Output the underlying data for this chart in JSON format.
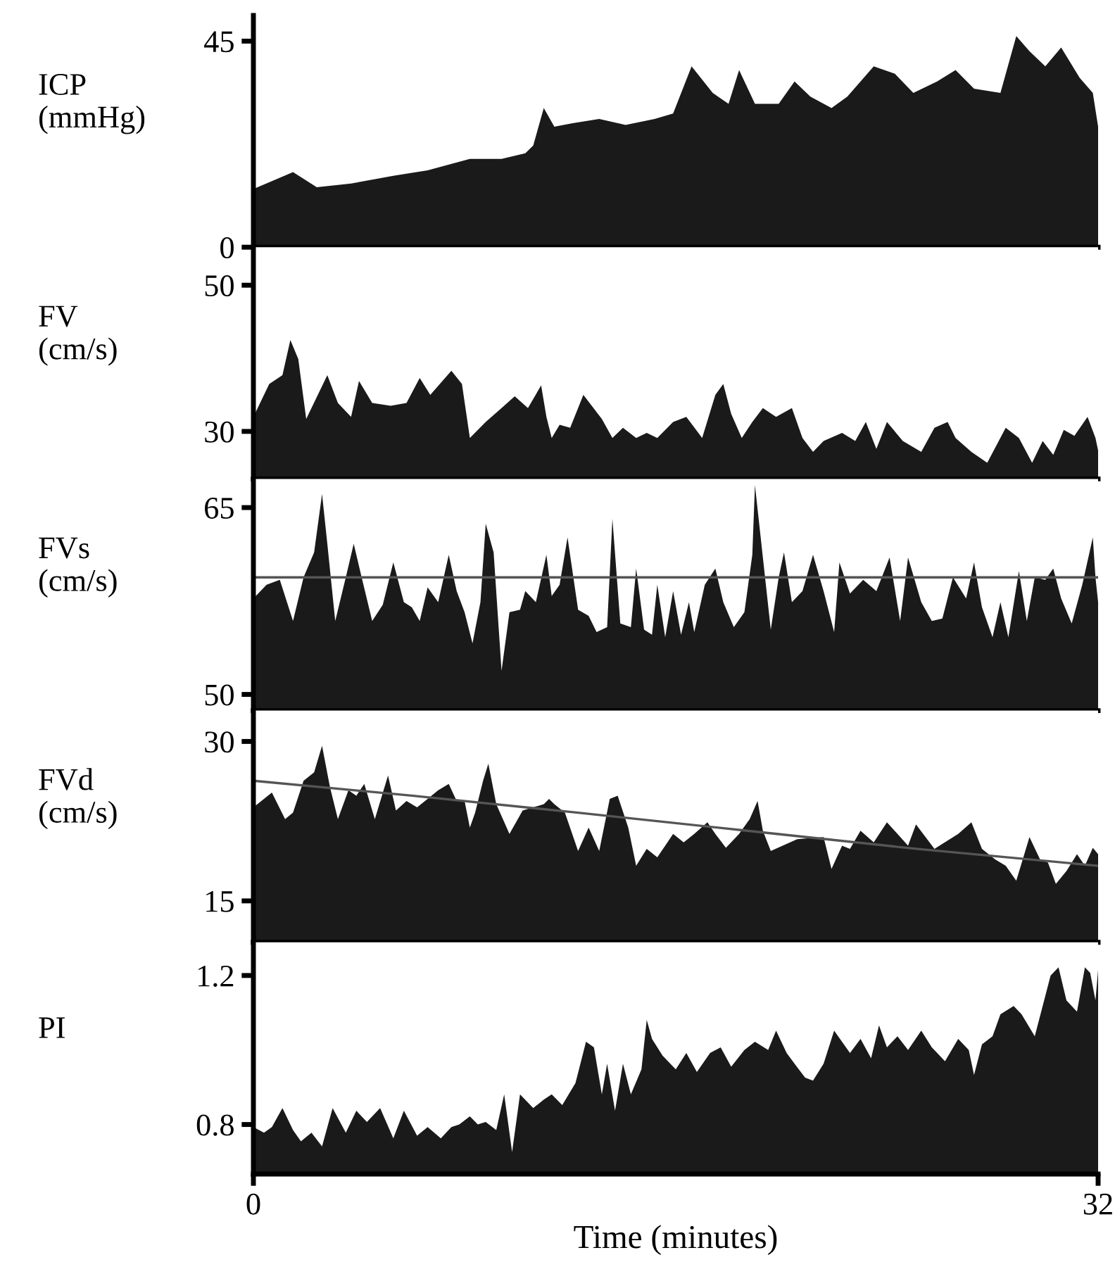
{
  "chart_data": [
    {
      "type": "area",
      "ylabel": "ICP\n(mmHg)",
      "xlim": [
        0,
        32
      ],
      "xticks": [
        0,
        32
      ],
      "ylim": [
        0,
        50.6
      ],
      "yticks": [
        0,
        45
      ],
      "tick_labels": "y",
      "series": [
        {
          "color": "#1a1a1a",
          "x": [
            0,
            1.5,
            2.4,
            3.7,
            5.3,
            6.6,
            8.2,
            9.4,
            10.3,
            10.6,
            11.0,
            11.4,
            12.1,
            13.1,
            14.1,
            15.2,
            15.9,
            16.6,
            17.4,
            18.0,
            18.4,
            19.0,
            19.9,
            20.5,
            21.1,
            21.9,
            22.5,
            23.5,
            24.3,
            25.0,
            25.9,
            26.6,
            27.3,
            28.3,
            28.9,
            29.4,
            30.0,
            30.6,
            31.3,
            31.8,
            32
          ],
          "values": [
            12.7,
            16.4,
            13.1,
            13.9,
            15.6,
            16.8,
            19.3,
            19.3,
            20.5,
            22.2,
            30.4,
            26.3,
            27.1,
            28.0,
            26.7,
            28.0,
            29.2,
            39.5,
            33.7,
            31.3,
            38.7,
            31.3,
            31.3,
            36.2,
            32.9,
            30.4,
            32.9,
            39.5,
            37.9,
            33.7,
            36.2,
            38.7,
            34.6,
            33.7,
            46.1,
            42.8,
            39.5,
            43.6,
            37.0,
            33.7,
            26.3
          ]
        }
      ]
    },
    {
      "type": "area",
      "ylabel": "FV\n(cm/s)",
      "xlim": [
        0,
        32
      ],
      "xticks": [
        0,
        32
      ],
      "ylim": [
        23.5,
        55.2
      ],
      "yticks": [
        30,
        50
      ],
      "tick_labels": "y",
      "series": [
        {
          "color": "#1a1a1a",
          "x": [
            0,
            0.6,
            1.1,
            1.4,
            1.7,
            2.0,
            2.8,
            3.2,
            3.7,
            4.0,
            4.5,
            5.2,
            5.8,
            6.3,
            6.7,
            7.5,
            7.9,
            8.2,
            8.8,
            9.4,
            9.9,
            10.4,
            10.9,
            11.1,
            11.3,
            11.6,
            12.0,
            12.5,
            13.2,
            13.6,
            14.0,
            14.5,
            14.9,
            15.3,
            15.9,
            16.4,
            17.0,
            17.5,
            17.8,
            18.1,
            18.5,
            18.9,
            19.3,
            19.8,
            20.4,
            20.8,
            21.2,
            21.6,
            22.3,
            22.8,
            23.2,
            23.6,
            24.0,
            24.6,
            25.3,
            25.8,
            26.3,
            26.6,
            27.2,
            27.8,
            28.5,
            29.0,
            29.5,
            29.9,
            30.3,
            30.7,
            31.1,
            31.6,
            31.9,
            32
          ],
          "values": [
            32.0,
            36.5,
            37.7,
            42.5,
            39.9,
            31.7,
            37.7,
            33.9,
            32.0,
            36.9,
            33.9,
            33.5,
            33.9,
            37.3,
            35.0,
            38.3,
            36.5,
            29.1,
            31.3,
            33.2,
            34.8,
            33.2,
            36.3,
            32.0,
            29.1,
            30.9,
            30.5,
            35.0,
            31.7,
            29.1,
            30.5,
            29.1,
            29.8,
            29.1,
            31.3,
            32.0,
            29.1,
            35.0,
            36.5,
            32.4,
            29.1,
            31.3,
            33.2,
            32.0,
            33.2,
            29.1,
            27.2,
            28.7,
            29.8,
            28.7,
            31.3,
            27.6,
            31.3,
            28.7,
            27.2,
            30.5,
            31.3,
            29.1,
            27.2,
            25.7,
            30.5,
            29.1,
            25.7,
            28.7,
            26.8,
            30.2,
            29.4,
            32.0,
            29.1,
            27.4
          ]
        }
      ]
    },
    {
      "type": "area",
      "ylabel": "FVs\n(cm/s)",
      "xlim": [
        0,
        32
      ],
      "xticks": [
        0,
        32
      ],
      "ylim": [
        48.7,
        67.3
      ],
      "yticks": [
        50,
        65
      ],
      "tick_labels": "y",
      "series": [
        {
          "color": "#1a1a1a",
          "x": [
            0,
            0.5,
            1.0,
            1.5,
            1.9,
            2.3,
            2.6,
            2.8,
            3.1,
            3.5,
            3.8,
            4.1,
            4.5,
            4.9,
            5.3,
            5.7,
            6.0,
            6.3,
            6.6,
            7.0,
            7.4,
            7.7,
            8.0,
            8.3,
            8.6,
            8.8,
            9.1,
            9.4,
            9.7,
            10.1,
            10.3,
            10.7,
            11.1,
            11.3,
            11.6,
            11.9,
            12.3,
            12.7,
            13.0,
            13.4,
            13.6,
            13.9,
            14.3,
            14.5,
            14.8,
            15.1,
            15.3,
            15.6,
            15.9,
            16.2,
            16.5,
            16.7,
            17.1,
            17.5,
            17.8,
            18.2,
            18.6,
            18.9,
            19.0,
            19.3,
            19.6,
            19.9,
            20.1,
            20.4,
            20.8,
            21.2,
            21.6,
            22.0,
            22.2,
            22.6,
            23.1,
            23.6,
            24.1,
            24.5,
            24.8,
            25.3,
            25.7,
            26.1,
            26.5,
            27.0,
            27.3,
            27.6,
            28.0,
            28.3,
            28.6,
            29.0,
            29.3,
            29.6,
            30.0,
            30.3,
            30.6,
            31.0,
            31.4,
            31.8,
            31.9,
            32
          ],
          "values": [
            57.7,
            58.8,
            59.2,
            55.9,
            59.4,
            61.4,
            66.1,
            62.1,
            55.9,
            59.4,
            62.1,
            59.4,
            55.9,
            57.2,
            60.6,
            57.4,
            57.0,
            55.9,
            58.6,
            57.4,
            61.2,
            58.3,
            56.6,
            54.1,
            57.4,
            63.7,
            61.4,
            51.9,
            56.6,
            56.8,
            58.3,
            57.4,
            61.2,
            57.9,
            58.8,
            62.6,
            56.8,
            56.3,
            55.0,
            55.4,
            64.1,
            55.7,
            55.4,
            60.1,
            55.2,
            54.8,
            58.8,
            54.6,
            58.3,
            54.8,
            57.4,
            55.0,
            58.8,
            60.1,
            57.4,
            55.4,
            56.6,
            61.2,
            66.8,
            61.0,
            55.2,
            59.4,
            61.4,
            57.4,
            58.3,
            61.2,
            58.3,
            55.0,
            60.6,
            58.1,
            59.2,
            58.3,
            61.0,
            55.9,
            61.0,
            57.4,
            55.9,
            56.1,
            59.4,
            57.7,
            60.6,
            57.0,
            54.6,
            57.4,
            54.6,
            59.9,
            55.9,
            59.4,
            59.2,
            60.1,
            57.7,
            55.7,
            58.8,
            62.6,
            59.4,
            57.4
          ]
        },
        {
          "type": "line",
          "color": "#555555",
          "x": [
            0,
            32
          ],
          "values": [
            59.4,
            59.4
          ]
        }
      ]
    },
    {
      "type": "area",
      "ylabel": "FVd\n(cm/s)",
      "xlim": [
        0,
        32
      ],
      "xticks": [
        0,
        32
      ],
      "ylim": [
        11.1,
        32.9
      ],
      "yticks": [
        15,
        30
      ],
      "tick_labels": "y",
      "series": [
        {
          "color": "#1a1a1a",
          "x": [
            0,
            0.7,
            1.2,
            1.5,
            1.9,
            2.3,
            2.6,
            2.9,
            3.2,
            3.6,
            3.9,
            4.2,
            4.6,
            5.1,
            5.4,
            5.8,
            6.2,
            6.6,
            7.0,
            7.4,
            7.7,
            8.0,
            8.2,
            8.4,
            8.7,
            8.9,
            9.2,
            9.7,
            10.2,
            10.6,
            11.0,
            11.2,
            11.4,
            11.8,
            12.3,
            12.7,
            13.1,
            13.5,
            13.8,
            14.2,
            14.5,
            14.9,
            15.3,
            15.6,
            15.9,
            16.3,
            16.7,
            17.2,
            17.5,
            17.9,
            18.4,
            18.8,
            19.1,
            19.3,
            19.6,
            20.6,
            21.6,
            21.9,
            22.3,
            22.6,
            23.0,
            23.5,
            24.0,
            24.4,
            24.8,
            25.1,
            25.8,
            26.7,
            27.2,
            27.6,
            28.1,
            28.5,
            28.9,
            29.4,
            29.8,
            30.1,
            30.4,
            30.8,
            31.2,
            31.5,
            31.8,
            32
          ],
          "values": [
            23.8,
            25.2,
            22.7,
            23.3,
            26.3,
            27.1,
            29.6,
            25.7,
            22.7,
            25.4,
            24.9,
            26.0,
            22.7,
            26.8,
            23.5,
            24.4,
            23.8,
            24.6,
            25.4,
            26.0,
            24.4,
            24.4,
            21.9,
            23.3,
            26.3,
            27.9,
            24.1,
            21.3,
            23.5,
            23.8,
            24.1,
            24.6,
            24.1,
            23.3,
            19.7,
            21.9,
            19.7,
            24.6,
            24.9,
            21.9,
            18.3,
            19.9,
            19.1,
            20.2,
            21.3,
            20.5,
            21.3,
            22.4,
            21.3,
            20.0,
            21.3,
            22.7,
            24.4,
            21.6,
            19.7,
            20.8,
            21.0,
            18.0,
            20.2,
            19.9,
            21.6,
            20.5,
            22.4,
            21.3,
            20.2,
            22.2,
            19.9,
            21.3,
            22.4,
            19.9,
            18.9,
            18.3,
            16.9,
            21.0,
            18.9,
            18.6,
            16.6,
            17.8,
            19.4,
            18.3,
            20.0,
            19.4
          ]
        },
        {
          "type": "line",
          "color": "#555555",
          "x": [
            0,
            6,
            12.3,
            18.7,
            25.1,
            32
          ],
          "values": [
            26.3,
            24.9,
            23.3,
            21.6,
            19.9,
            18.3
          ]
        }
      ]
    },
    {
      "type": "area",
      "ylabel": "PI",
      "xlabel": "Time (minutes)",
      "xlim": [
        0,
        32
      ],
      "xticks": [
        0,
        32
      ],
      "ylim": [
        0.667,
        1.289
      ],
      "yticks": [
        0.8,
        1.2
      ],
      "series": [
        {
          "color": "#1a1a1a",
          "x": [
            0,
            0.4,
            0.7,
            1.1,
            1.5,
            1.8,
            2.2,
            2.6,
            3.0,
            3.5,
            3.9,
            4.3,
            4.8,
            5.3,
            5.7,
            6.2,
            6.6,
            7.1,
            7.5,
            7.8,
            8.2,
            8.5,
            8.8,
            9.2,
            9.5,
            9.8,
            10.1,
            10.6,
            11.0,
            11.3,
            11.7,
            12.2,
            12.6,
            12.9,
            13.2,
            13.4,
            13.7,
            14.0,
            14.3,
            14.7,
            14.9,
            15.1,
            15.5,
            16.0,
            16.4,
            16.8,
            17.3,
            17.7,
            18.1,
            18.6,
            19.0,
            19.5,
            19.8,
            20.2,
            20.5,
            20.9,
            21.2,
            21.6,
            22.0,
            22.6,
            23.0,
            23.4,
            23.7,
            24.0,
            24.4,
            24.8,
            25.3,
            25.7,
            26.2,
            26.7,
            27.1,
            27.3,
            27.6,
            28.0,
            28.3,
            28.8,
            29.1,
            29.6,
            29.9,
            30.2,
            30.5,
            30.8,
            31.2,
            31.5,
            31.7,
            31.9,
            32
          ],
          "values": [
            0.793,
            0.778,
            0.793,
            0.844,
            0.785,
            0.755,
            0.778,
            0.741,
            0.844,
            0.778,
            0.837,
            0.807,
            0.844,
            0.763,
            0.837,
            0.77,
            0.793,
            0.763,
            0.793,
            0.8,
            0.822,
            0.8,
            0.807,
            0.785,
            0.881,
            0.726,
            0.881,
            0.844,
            0.867,
            0.881,
            0.852,
            0.911,
            1.022,
            1.007,
            0.881,
            0.963,
            0.837,
            0.963,
            0.881,
            0.948,
            1.081,
            1.03,
            0.985,
            0.948,
            0.992,
            0.941,
            0.992,
            1.007,
            0.955,
            1.0,
            1.022,
            1.0,
            1.052,
            0.992,
            0.963,
            0.926,
            0.918,
            0.963,
            1.052,
            0.992,
            1.03,
            0.978,
            1.066,
            1.007,
            1.037,
            1.0,
            1.052,
            1.007,
            0.97,
            1.03,
            1.0,
            0.933,
            1.015,
            1.037,
            1.096,
            1.118,
            1.096,
            1.037,
            1.118,
            1.2,
            1.222,
            1.133,
            1.103,
            1.222,
            1.207,
            1.133,
            1.215
          ]
        }
      ]
    }
  ]
}
